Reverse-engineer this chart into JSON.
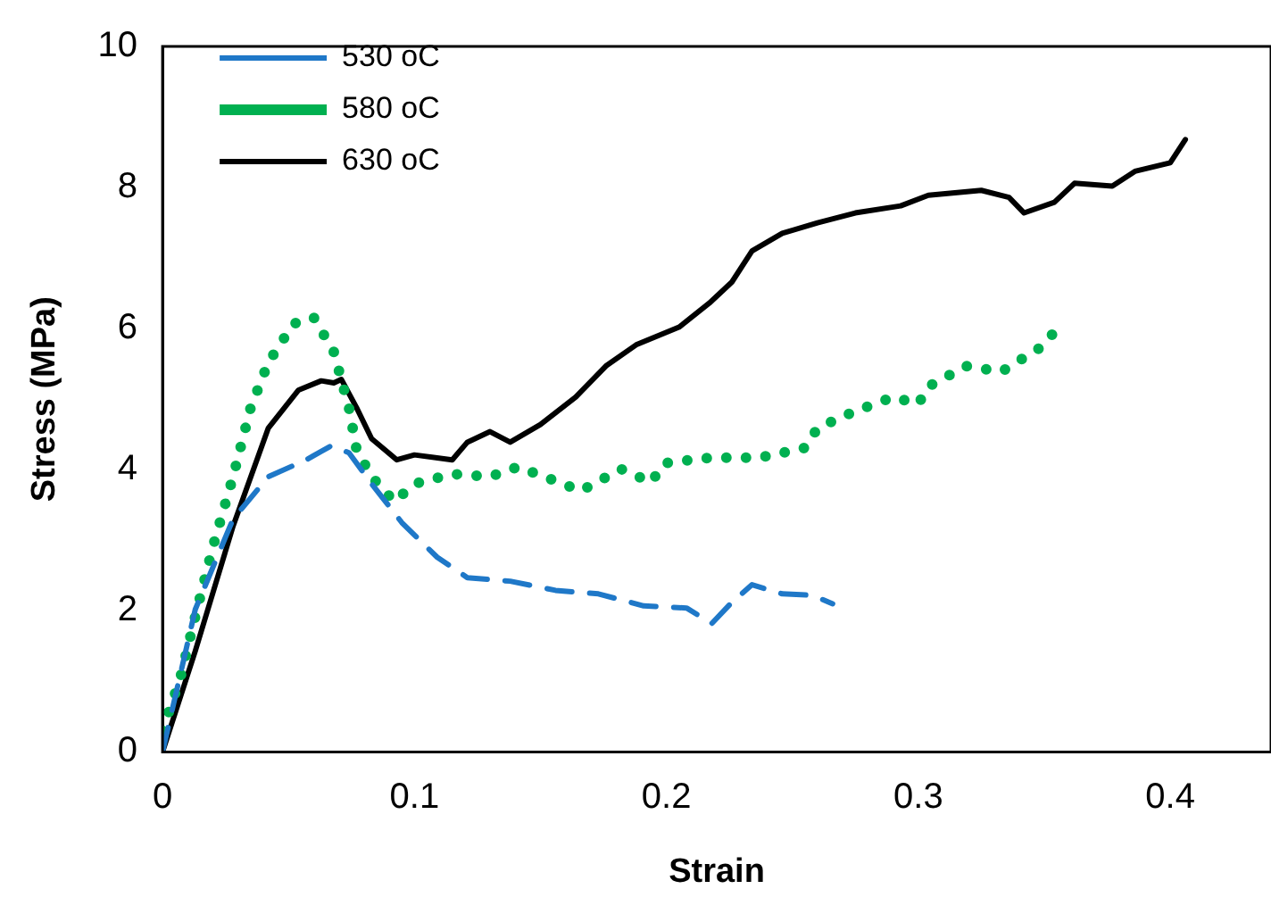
{
  "chart_data": {
    "type": "line",
    "xlabel": "Strain",
    "ylabel": "Stress (MPa)",
    "xlim": [
      0,
      0.44
    ],
    "xticks": [
      0,
      0.1,
      0.2,
      0.3,
      0.4
    ],
    "ylim": [
      0,
      10
    ],
    "yticks": [
      0,
      2,
      4,
      6,
      8,
      10
    ],
    "grid": false,
    "legend": "top left",
    "marker": "none",
    "series": [
      {
        "name": "530 oC",
        "color": "#1f78c8",
        "line_style": "dashed",
        "x": [
          0,
          0.013,
          0.028,
          0.042,
          0.057,
          0.067,
          0.074,
          0.083,
          0.095,
          0.109,
          0.121,
          0.138,
          0.156,
          0.173,
          0.191,
          0.208,
          0.218,
          0.226,
          0.234,
          0.246,
          0.258,
          0.266
        ],
        "values": [
          0,
          2.02,
          3.3,
          3.9,
          4.14,
          4.34,
          4.24,
          3.8,
          3.25,
          2.76,
          2.47,
          2.42,
          2.29,
          2.24,
          2.07,
          2.04,
          1.82,
          2.12,
          2.37,
          2.24,
          2.22,
          2.1
        ]
      },
      {
        "name": "580 oC",
        "color": "#00b050",
        "line_style": "dotted",
        "x": [
          0,
          0.007,
          0.013,
          0.02,
          0.028,
          0.035,
          0.042,
          0.052,
          0.06,
          0.068,
          0.074,
          0.077,
          0.083,
          0.092,
          0.1,
          0.115,
          0.13,
          0.141,
          0.159,
          0.166,
          0.182,
          0.194,
          0.199,
          0.217,
          0.237,
          0.255,
          0.26,
          0.275,
          0.29,
          0.3,
          0.304,
          0.319,
          0.333,
          0.348,
          0.354
        ],
        "values": [
          0.3,
          1.04,
          1.92,
          2.91,
          3.9,
          4.88,
          5.52,
          6.07,
          6.16,
          5.67,
          4.88,
          4.29,
          3.9,
          3.55,
          3.8,
          3.94,
          3.9,
          4.04,
          3.8,
          3.7,
          4.01,
          3.82,
          4.09,
          4.17,
          4.17,
          4.31,
          4.59,
          4.83,
          5.03,
          4.93,
          5.18,
          5.47,
          5.39,
          5.72,
          5.95
        ]
      },
      {
        "name": "630 oC",
        "color": "#000000",
        "line_style": "solid",
        "x": [
          0,
          0.013,
          0.028,
          0.042,
          0.054,
          0.063,
          0.068,
          0.071,
          0.077,
          0.083,
          0.093,
          0.1,
          0.115,
          0.121,
          0.13,
          0.138,
          0.15,
          0.164,
          0.176,
          0.188,
          0.205,
          0.217,
          0.226,
          0.234,
          0.246,
          0.26,
          0.275,
          0.293,
          0.304,
          0.325,
          0.336,
          0.342,
          0.354,
          0.362,
          0.377,
          0.386,
          0.4,
          0.406
        ],
        "values": [
          0,
          1.43,
          3.2,
          4.59,
          5.13,
          5.26,
          5.23,
          5.28,
          4.88,
          4.44,
          4.14,
          4.21,
          4.14,
          4.39,
          4.54,
          4.39,
          4.64,
          5.03,
          5.47,
          5.77,
          6.02,
          6.36,
          6.66,
          7.1,
          7.35,
          7.5,
          7.64,
          7.74,
          7.89,
          7.96,
          7.86,
          7.64,
          7.79,
          8.06,
          8.02,
          8.23,
          8.35,
          8.68
        ]
      }
    ]
  }
}
